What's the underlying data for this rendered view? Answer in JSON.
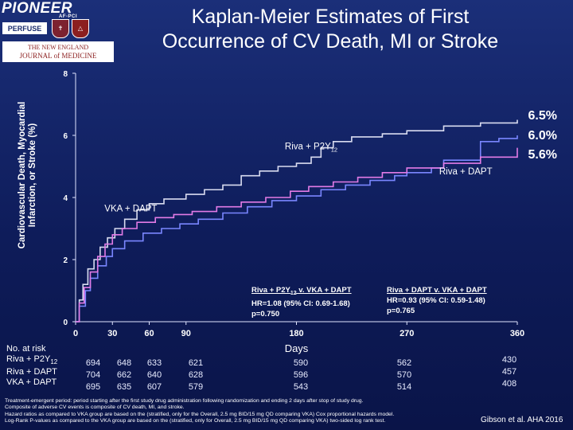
{
  "logos": {
    "pioneer": "PIONEER",
    "pioneer_sub": "AF-PCI",
    "perfuse": "PERFUSE",
    "nejm_line1": "THE NEW ENGLAND",
    "nejm_line2": "JOURNAL of MEDICINE"
  },
  "title_line1": "Kaplan-Meier Estimates of First",
  "title_line2": "Occurrence of CV Death, MI or Stroke",
  "ylabel_line1": "Cardiovascular Death, Myocardial",
  "ylabel_line2": "Infarction, or Stroke (%)",
  "final_pct": [
    "6.5%",
    "6.0%",
    "5.6%"
  ],
  "hr_left": {
    "title": "Riva + P2Y12 v. VKA + DAPT",
    "hr": "HR=1.08 (95% CI: 0.69-1.68)",
    "p": "p=0.750"
  },
  "hr_right": {
    "title": "Riva + DAPT v. VKA + DAPT",
    "hr": "HR=0.93 (95% CI: 0.59-1.48)",
    "p": "p=0.765"
  },
  "risk_table": {
    "header": "No. at risk",
    "rows": [
      {
        "label": "Riva + P2Y12",
        "values": [
          "694",
          "648",
          "633",
          "621",
          "590",
          "562",
          "430"
        ]
      },
      {
        "label": "Riva + DAPT",
        "values": [
          "704",
          "662",
          "640",
          "628",
          "596",
          "570",
          "457"
        ]
      },
      {
        "label": "VKA + DAPT",
        "values": [
          "695",
          "635",
          "607",
          "579",
          "543",
          "514",
          "408"
        ]
      }
    ]
  },
  "footnotes": [
    "Treatment-emergent period: period starting after the first study drug administration following randomization and ending 2 days after stop of study drug.",
    "Composite of adverse CV events is composite of CV death, MI, and stroke.",
    "Hazard ratios as compared to VKA group are based on the (stratified, only for the Overall, 2.5 mg BID/15 mg QD comparing VKA) Cox proportional hazards model.",
    "Log-Rank P-values as compared to the VKA group are based on the (stratified, only for Overall, 2.5 mg BID/15 mg QD comparing VKA) two-sided log rank test."
  ],
  "credit": "Gibson et al. AHA 2016",
  "chart_data": {
    "type": "line",
    "xlabel": "Days",
    "ylabel": "Cardiovascular Death, Myocardial Infarction, or Stroke (%)",
    "xticks": [
      0,
      30,
      60,
      90,
      180,
      270,
      360
    ],
    "yticks": [
      0,
      2,
      4,
      6,
      8
    ],
    "xlim": [
      0,
      360
    ],
    "ylim": [
      0,
      8
    ],
    "colors": {
      "riva_p2y12": "#d9dcf0",
      "riva_dapt": "#7a86ff",
      "vka_dapt": "#e27be6"
    },
    "series": [
      {
        "name": "Riva + P2Y12",
        "label_text": "Riva + P2Y",
        "label_sub": "12",
        "points": [
          [
            0,
            0
          ],
          [
            3,
            0.7
          ],
          [
            6,
            1.2
          ],
          [
            10,
            1.7
          ],
          [
            15,
            2.0
          ],
          [
            20,
            2.4
          ],
          [
            26,
            2.7
          ],
          [
            32,
            3.0
          ],
          [
            40,
            3.3
          ],
          [
            50,
            3.6
          ],
          [
            60,
            3.8
          ],
          [
            72,
            3.95
          ],
          [
            90,
            4.1
          ],
          [
            105,
            4.25
          ],
          [
            120,
            4.4
          ],
          [
            135,
            4.7
          ],
          [
            150,
            4.85
          ],
          [
            165,
            5.0
          ],
          [
            180,
            5.1
          ],
          [
            192,
            5.3
          ],
          [
            200,
            5.6
          ],
          [
            210,
            5.8
          ],
          [
            225,
            5.95
          ],
          [
            250,
            6.05
          ],
          [
            270,
            6.15
          ],
          [
            300,
            6.3
          ],
          [
            330,
            6.4
          ],
          [
            360,
            6.5
          ]
        ]
      },
      {
        "name": "Riva + DAPT",
        "label_text": "Riva + DAPT",
        "points": [
          [
            0,
            0
          ],
          [
            3,
            0.5
          ],
          [
            8,
            1.0
          ],
          [
            12,
            1.4
          ],
          [
            18,
            1.8
          ],
          [
            25,
            2.1
          ],
          [
            30,
            2.35
          ],
          [
            40,
            2.6
          ],
          [
            55,
            2.85
          ],
          [
            70,
            3.0
          ],
          [
            85,
            3.15
          ],
          [
            100,
            3.3
          ],
          [
            120,
            3.5
          ],
          [
            140,
            3.7
          ],
          [
            160,
            3.9
          ],
          [
            180,
            4.05
          ],
          [
            200,
            4.25
          ],
          [
            220,
            4.4
          ],
          [
            240,
            4.55
          ],
          [
            260,
            4.7
          ],
          [
            270,
            4.8
          ],
          [
            290,
            4.95
          ],
          [
            300,
            5.2
          ],
          [
            330,
            5.8
          ],
          [
            345,
            5.9
          ],
          [
            360,
            6.0
          ]
        ]
      },
      {
        "name": "VKA + DAPT",
        "label_text": "VKA + DAPT",
        "points": [
          [
            0,
            0
          ],
          [
            3,
            0.6
          ],
          [
            7,
            1.1
          ],
          [
            12,
            1.6
          ],
          [
            18,
            2.1
          ],
          [
            24,
            2.5
          ],
          [
            30,
            2.8
          ],
          [
            38,
            3.0
          ],
          [
            50,
            3.2
          ],
          [
            65,
            3.35
          ],
          [
            80,
            3.45
          ],
          [
            95,
            3.55
          ],
          [
            115,
            3.7
          ],
          [
            135,
            3.85
          ],
          [
            155,
            4.0
          ],
          [
            175,
            4.2
          ],
          [
            190,
            4.35
          ],
          [
            210,
            4.5
          ],
          [
            230,
            4.65
          ],
          [
            250,
            4.8
          ],
          [
            270,
            4.95
          ],
          [
            300,
            5.1
          ],
          [
            330,
            5.3
          ],
          [
            360,
            5.6
          ]
        ]
      }
    ]
  }
}
